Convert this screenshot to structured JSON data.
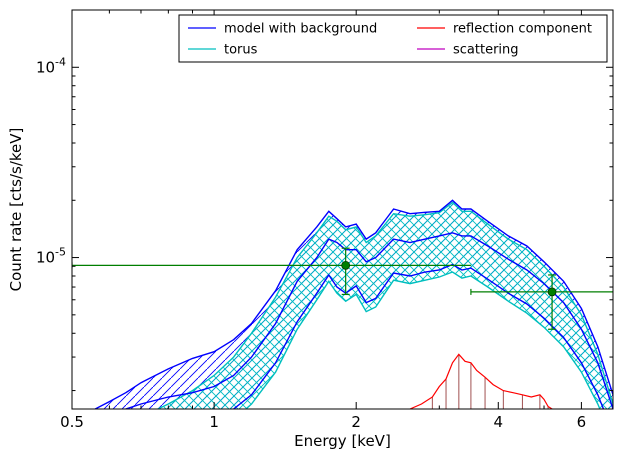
{
  "chart_data": {
    "type": "line",
    "title": "",
    "xlabel": "Energy [keV]",
    "ylabel": "Count rate [cts/s/keV]",
    "xscale": "log",
    "yscale": "log",
    "xlim": [
      0.5,
      7.0
    ],
    "ylim": [
      1.6e-06,
      0.0002
    ],
    "grid": false,
    "legend_position": "top-right",
    "x_ticks": [
      {
        "value": 0.5,
        "label": "0.5"
      },
      {
        "value": 1,
        "label": "1"
      },
      {
        "value": 2,
        "label": "2"
      },
      {
        "value": 4,
        "label": "4"
      },
      {
        "value": 6,
        "label": "6"
      }
    ],
    "y_ticks": [
      {
        "value": 1e-05,
        "base": "10",
        "exp": "-5"
      },
      {
        "value": 0.0001,
        "base": "10",
        "exp": "-4"
      }
    ],
    "legend": [
      {
        "label": "model with background",
        "color": "#0000ff"
      },
      {
        "label": "reflection component",
        "color": "#ff0000"
      },
      {
        "label": "torus",
        "color": "#00bfbf"
      },
      {
        "label": "scattering",
        "color": "#bf00bf"
      }
    ],
    "series": [
      {
        "name": "model with background",
        "color": "#0000ff",
        "x": [
          0.5,
          0.56,
          0.6,
          0.65,
          0.7,
          0.8,
          0.9,
          1.0,
          1.1,
          1.2,
          1.35,
          1.5,
          1.65,
          1.75,
          1.82,
          1.9,
          2.0,
          2.1,
          2.2,
          2.4,
          2.6,
          2.8,
          3.0,
          3.2,
          3.35,
          3.5,
          3.8,
          4.2,
          4.6,
          5.0,
          5.5,
          6.0,
          6.5,
          7.0
        ],
        "upper": [
          1.5e-06,
          1.6e-06,
          1.75e-06,
          1.95e-06,
          2.2e-06,
          2.6e-06,
          2.95e-06,
          3.2e-06,
          3.7e-06,
          4.5e-06,
          6.7e-06,
          1.1e-05,
          1.45e-05,
          1.75e-05,
          1.6e-05,
          1.45e-05,
          1.5e-05,
          1.25e-05,
          1.35e-05,
          1.8e-05,
          1.7e-05,
          1.73e-05,
          1.75e-05,
          2e-05,
          1.8e-05,
          1.8e-05,
          1.55e-05,
          1.3e-05,
          1.15e-05,
          9.5e-06,
          7.5e-06,
          5.4e-06,
          3.4e-06,
          1.9e-06
        ],
        "mid": [
          1.4e-06,
          1.45e-06,
          1.5e-06,
          1.6e-06,
          1.7e-06,
          1.85e-06,
          1.95e-06,
          2.1e-06,
          2.4e-06,
          3e-06,
          4.5e-06,
          7.5e-06,
          1e-05,
          1.25e-05,
          1.2e-05,
          1.1e-05,
          1.1e-05,
          9.5e-06,
          1e-05,
          1.25e-05,
          1.2e-05,
          1.25e-05,
          1.3e-05,
          1.35e-05,
          1.3e-05,
          1.3e-05,
          1.15e-05,
          9.8e-06,
          8.6e-06,
          7.3e-06,
          5.8e-06,
          4.2e-06,
          2.8e-06,
          1.6e-06
        ],
        "lower": [
          1.2e-06,
          1.2e-06,
          1.25e-06,
          1.3e-06,
          1.35e-06,
          1.4e-06,
          1.45e-06,
          1.5e-06,
          1.6e-06,
          1.9e-06,
          2.8e-06,
          4.6e-06,
          6.5e-06,
          8.1e-06,
          7e-06,
          6.5e-06,
          7.1e-06,
          5.8e-06,
          6.1e-06,
          8.3e-06,
          8e-06,
          8.4e-06,
          8.6e-06,
          9.2e-06,
          8.6e-06,
          8.8e-06,
          7.7e-06,
          6.5e-06,
          5.7e-06,
          4.8e-06,
          3.8e-06,
          2.8e-06,
          1.9e-06,
          1.2e-06
        ]
      },
      {
        "name": "torus",
        "color": "#00bfbf",
        "x": [
          0.72,
          0.8,
          0.9,
          1.0,
          1.1,
          1.2,
          1.35,
          1.5,
          1.65,
          1.75,
          1.82,
          1.9,
          2.0,
          2.1,
          2.2,
          2.4,
          2.6,
          2.8,
          3.0,
          3.2,
          3.35,
          3.5,
          3.8,
          4.2,
          4.6,
          5.0,
          5.5,
          6.0,
          6.5,
          7.0
        ],
        "upper": [
          1.5e-06,
          1.7e-06,
          2e-06,
          2.4e-06,
          3e-06,
          4e-06,
          6.2e-06,
          1e-05,
          1.35e-05,
          1.65e-05,
          1.55e-05,
          1.4e-05,
          1.45e-05,
          1.2e-05,
          1.3e-05,
          1.7e-05,
          1.65e-05,
          1.68e-05,
          1.72e-05,
          1.95e-05,
          1.75e-05,
          1.75e-05,
          1.5e-05,
          1.25e-05,
          1.1e-05,
          9e-06,
          7e-06,
          5e-06,
          3.1e-06,
          1.7e-06
        ],
        "lower": [
          1.1e-06,
          1.15e-06,
          1.2e-06,
          1.3e-06,
          1.4e-06,
          1.7e-06,
          2.5e-06,
          4.2e-06,
          6e-06,
          7.5e-06,
          6.5e-06,
          5.9e-06,
          6.4e-06,
          5.2e-06,
          5.5e-06,
          7.6e-06,
          7.3e-06,
          7.6e-06,
          7.9e-06,
          8.4e-06,
          7.8e-06,
          8e-06,
          7e-06,
          5.9e-06,
          5.1e-06,
          4.3e-06,
          3.4e-06,
          2.5e-06,
          1.7e-06,
          1.1e-06
        ]
      },
      {
        "name": "reflection component",
        "color": "#ff0000",
        "x": [
          2.6,
          2.75,
          2.9,
          3.0,
          3.1,
          3.2,
          3.3,
          3.4,
          3.5,
          3.6,
          3.75,
          3.9,
          4.1,
          4.3,
          4.5,
          4.7,
          4.9,
          5.0,
          5.1,
          5.2,
          5.4
        ],
        "upper": [
          1.6e-06,
          1.7e-06,
          1.85e-06,
          2.1e-06,
          2.3e-06,
          2.8e-06,
          3.1e-06,
          2.85e-06,
          2.8e-06,
          2.55e-06,
          2.35e-06,
          2.15e-06,
          2e-06,
          1.95e-06,
          1.9e-06,
          1.85e-06,
          1.9e-06,
          1.8e-06,
          1.65e-06,
          1.6e-06,
          1.55e-06
        ]
      },
      {
        "name": "scattering",
        "color": "#bf00bf",
        "x": [],
        "upper": []
      }
    ],
    "data_points": [
      {
        "x": 1.9,
        "y": 9.1e-06,
        "x_low": 0.5,
        "x_high": 3.5,
        "y_low": 6.4e-06,
        "y_high": 1.12e-05
      },
      {
        "x": 5.2,
        "y": 6.6e-06,
        "x_low": 3.5,
        "x_high": 7.0,
        "y_low": 4.2e-06,
        "y_high": 8.1e-06
      }
    ],
    "data_point_color": "#007f00"
  }
}
